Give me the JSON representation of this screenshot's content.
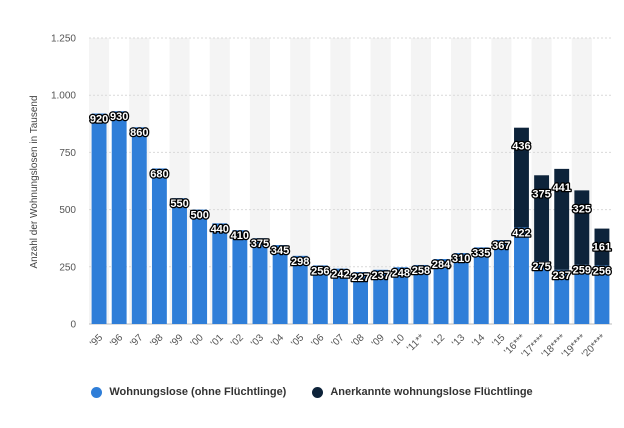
{
  "chart_data": {
    "type": "bar",
    "stacked": true,
    "ylabel": "Anzahl der Wohnungslosen in Tausend",
    "ylim": [
      0,
      1250
    ],
    "yticks": [
      {
        "value": 0,
        "label": "0"
      },
      {
        "value": 250,
        "label": "250"
      },
      {
        "value": 500,
        "label": "500"
      },
      {
        "value": 750,
        "label": "750"
      },
      {
        "value": 1000,
        "label": "1.000"
      },
      {
        "value": 1250,
        "label": "1.250"
      }
    ],
    "categories": [
      "'95",
      "'96",
      "'97",
      "'98",
      "'99",
      "'00",
      "'01",
      "'02",
      "'03",
      "'04",
      "'05",
      "'06",
      "'07",
      "'08",
      "'09",
      "'10",
      "'11**",
      "'12",
      "'13",
      "'14",
      "'15",
      "'16***",
      "'17****",
      "'18****",
      "'19****",
      "'20****"
    ],
    "series": [
      {
        "name": "Wohnungslose (ohne Flüchtlinge)",
        "color": "#2f7ed8",
        "values": [
          920,
          930,
          860,
          680,
          550,
          500,
          440,
          410,
          375,
          345,
          298,
          256,
          242,
          227,
          237,
          248,
          258,
          284,
          310,
          335,
          367,
          422,
          275,
          237,
          259,
          256
        ]
      },
      {
        "name": "Anerkannte wohnungslose Flüchtlinge",
        "color": "#0d233a",
        "values": [
          null,
          null,
          null,
          null,
          null,
          null,
          null,
          null,
          null,
          null,
          null,
          null,
          null,
          null,
          null,
          null,
          null,
          null,
          null,
          null,
          null,
          436,
          375,
          441,
          325,
          161
        ]
      }
    ],
    "legend_position": "bottom-center",
    "grid": true
  }
}
